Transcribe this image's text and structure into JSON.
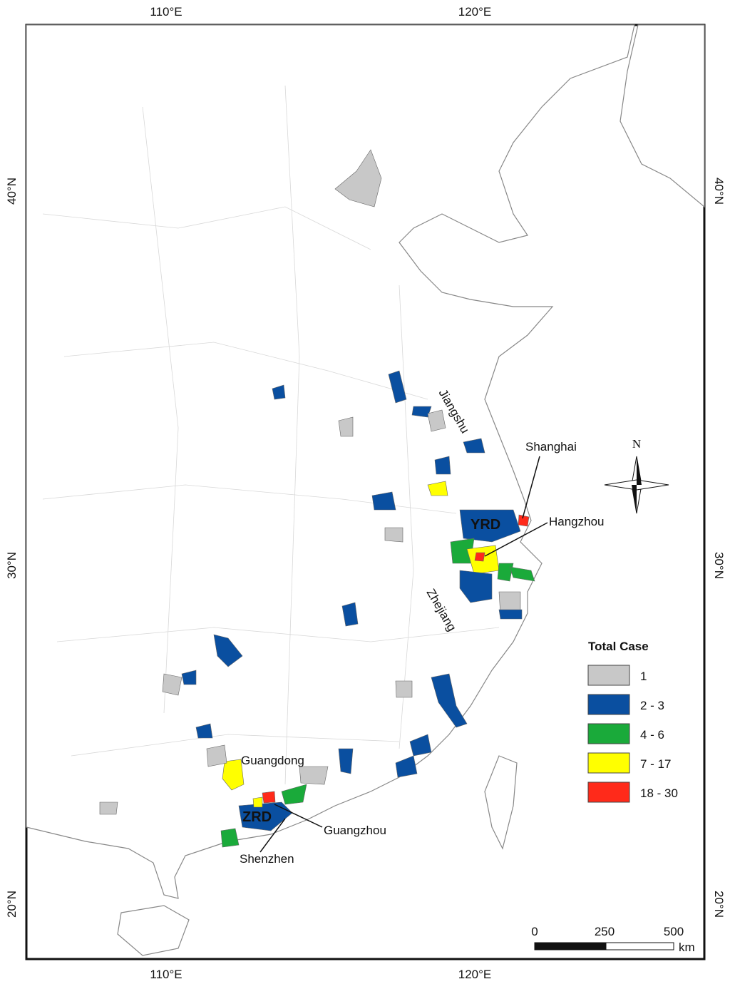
{
  "graticule": {
    "top": [
      "110°E",
      "120°E"
    ],
    "bottom": [
      "110°E",
      "120°E"
    ],
    "left": [
      "40°N",
      "30°N",
      "20°N"
    ],
    "right": [
      "40°N",
      "30°N",
      "20°N"
    ]
  },
  "places": {
    "jiangshu": "Jiangshu",
    "shanghai": "Shanghai",
    "hangzhou": "Hangzhou",
    "yrd": "YRD",
    "zhejiang": "Zhejiang",
    "guangdong": "Guangdong",
    "zrd": "ZRD",
    "guangzhou": "Guangzhou",
    "shenzhen": "Shenzhen"
  },
  "north_arrow": "N",
  "legend": {
    "title": "Total Case",
    "items": [
      {
        "label": "1",
        "color": "#c8c8c8"
      },
      {
        "label": "2 - 3",
        "color": "#0a4fa0"
      },
      {
        "label": "4 - 6",
        "color": "#1aaa3a"
      },
      {
        "label": "7 - 17",
        "color": "#ffff00"
      },
      {
        "label": "18 - 30",
        "color": "#ff2a1a"
      }
    ]
  },
  "scale_bar": {
    "ticks": [
      "0",
      "250",
      "500"
    ],
    "unit": "km"
  }
}
